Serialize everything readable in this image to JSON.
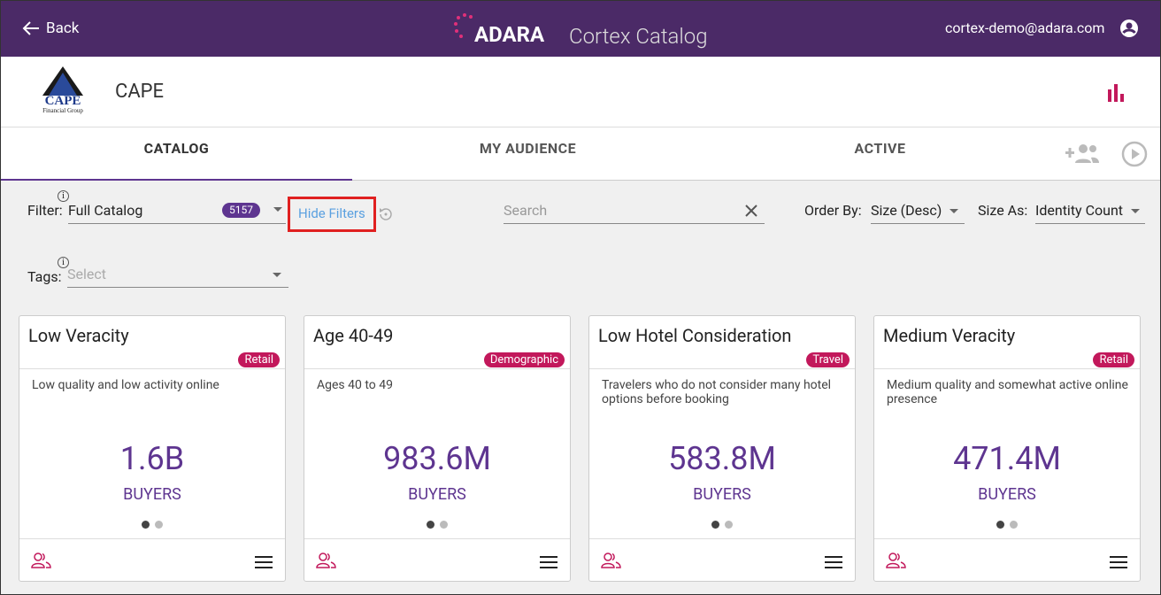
{
  "header": {
    "back": "Back",
    "brand": "ADARA",
    "product": "Cortex Catalog",
    "user": "cortex-demo@adara.com"
  },
  "org": {
    "logo": "CAPE",
    "logo_sub": "Financial Group",
    "name": "CAPE"
  },
  "tabs": [
    "CATALOG",
    "MY AUDIENCE",
    "ACTIVE"
  ],
  "filters": {
    "filter_label": "Filter:",
    "filter_value": "Full Catalog",
    "count": "5157",
    "hide": "Hide Filters",
    "search": "Search",
    "order_label": "Order By:",
    "order_value": "Size (Desc)",
    "size_label": "Size As:",
    "size_value": "Identity Count",
    "tags_label": "Tags:",
    "tags_placeholder": "Select"
  },
  "cards": [
    {
      "title": "Low Veracity",
      "tag": "Retail",
      "description": "Low quality and low activity online",
      "size": "1.6B",
      "unit": "BUYERS"
    },
    {
      "title": "Age 40-49",
      "tag": "Demographic",
      "description": "Ages 40 to 49",
      "size": "983.6M",
      "unit": "BUYERS"
    },
    {
      "title": "Low Hotel Consideration",
      "tag": "Travel",
      "description": "Travelers who do not consider many hotel options before booking",
      "size": "583.8M",
      "unit": "BUYERS"
    },
    {
      "title": "Medium Veracity",
      "tag": "Retail",
      "description": "Medium quality and somewhat active online presence",
      "size": "471.4M",
      "unit": "BUYERS"
    }
  ]
}
